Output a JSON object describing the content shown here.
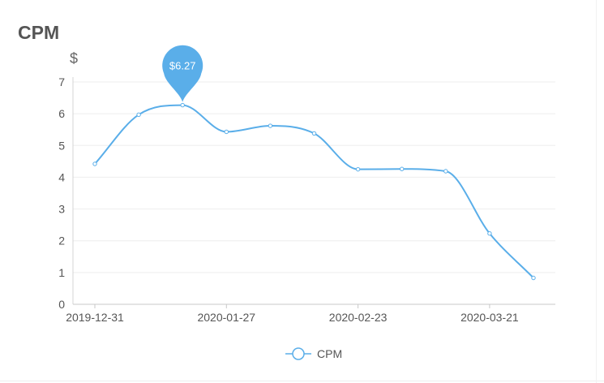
{
  "page": {
    "title": "CPM"
  },
  "chart_data": {
    "type": "line",
    "title": "CPM",
    "ylabel": "$",
    "xlabel": "",
    "ylim": [
      0,
      7
    ],
    "yticks": [
      0,
      1,
      2,
      3,
      4,
      5,
      6,
      7
    ],
    "xtick_labels": [
      "2019-12-31",
      "2020-01-27",
      "2020-02-23",
      "2020-03-21"
    ],
    "xtick_indices": [
      0,
      3,
      6,
      9
    ],
    "x": [
      "2019-12-31",
      "2020-01-09",
      "2020-01-18",
      "2020-01-27",
      "2020-02-05",
      "2020-02-14",
      "2020-02-23",
      "2020-03-03",
      "2020-03-12",
      "2020-03-21",
      "2020-03-30"
    ],
    "series": [
      {
        "name": "CPM",
        "color": "#5aaee9",
        "values": [
          4.42,
          5.97,
          6.27,
          5.43,
          5.62,
          5.38,
          4.25,
          4.26,
          4.19,
          2.23,
          0.83
        ]
      }
    ],
    "highlight": {
      "index": 2,
      "label": "$6.27"
    },
    "grid": true,
    "legend": "bottom-center"
  }
}
